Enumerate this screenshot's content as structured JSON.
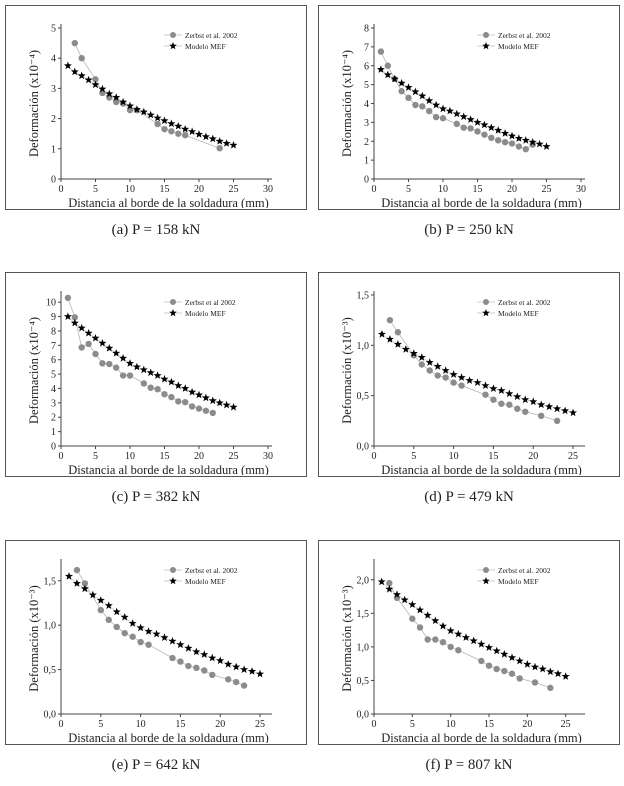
{
  "colors": {
    "exp": "#8c8c8c",
    "exp_line": "#b5b5b5",
    "model": "#000000"
  },
  "chart_data": [
    {
      "type": "scatter",
      "caption": "(a) P = 158 kN",
      "xlabel": "Distancia al borde de la soldadura (mm)",
      "ylabel": "Deformación (x10⁻⁴)",
      "xlim": [
        0,
        30
      ],
      "ylim": [
        0,
        5
      ],
      "xticks": [
        0,
        5,
        10,
        15,
        20,
        25,
        30
      ],
      "xtick_labels": [
        "0",
        "5",
        "10",
        "15",
        "20",
        "25",
        "30"
      ],
      "yticks": [
        0,
        1,
        2,
        3,
        4,
        5
      ],
      "ytick_labels": [
        "0",
        "1",
        "2",
        "3",
        "4",
        "5"
      ],
      "legend_position": "top-right",
      "series": [
        {
          "name": "Zerbst et al. 2002",
          "marker": "circle",
          "x": [
            2,
            3,
            5,
            6,
            7,
            8,
            9,
            10,
            11,
            14,
            15,
            16,
            17,
            18,
            23
          ],
          "y": [
            4.5,
            4.0,
            3.3,
            2.85,
            2.7,
            2.55,
            2.5,
            2.28,
            2.28,
            1.82,
            1.65,
            1.58,
            1.5,
            1.45,
            1.02
          ]
        },
        {
          "name": "Modelo MEF",
          "marker": "star",
          "x": [
            1,
            2,
            3,
            4,
            5,
            6,
            7,
            8,
            9,
            10,
            11,
            12,
            13,
            14,
            15,
            16,
            17,
            18,
            19,
            20,
            21,
            22,
            23,
            24,
            25
          ],
          "y": [
            3.75,
            3.55,
            3.42,
            3.28,
            3.12,
            2.98,
            2.82,
            2.7,
            2.55,
            2.42,
            2.3,
            2.22,
            2.12,
            2.02,
            1.93,
            1.83,
            1.75,
            1.65,
            1.57,
            1.48,
            1.4,
            1.33,
            1.25,
            1.18,
            1.12
          ]
        }
      ]
    },
    {
      "type": "scatter",
      "caption": "(b) P = 250 kN",
      "xlabel": "Distancia al borde de la soldadura (mm)",
      "ylabel": "Deformación (x10⁻⁴)",
      "xlim": [
        0,
        30
      ],
      "ylim": [
        0,
        8
      ],
      "xticks": [
        0,
        5,
        10,
        15,
        20,
        25,
        30
      ],
      "xtick_labels": [
        "0",
        "5",
        "10",
        "15",
        "20",
        "25",
        "30"
      ],
      "yticks": [
        0,
        1,
        2,
        3,
        4,
        5,
        6,
        7,
        8
      ],
      "ytick_labels": [
        "0",
        "1",
        "2",
        "3",
        "4",
        "5",
        "6",
        "7",
        "8"
      ],
      "legend_position": "top-right",
      "series": [
        {
          "name": "Zerbst et al. 2002",
          "marker": "circle",
          "x": [
            1,
            2,
            3,
            4,
            5,
            6,
            7,
            8,
            9,
            10,
            12,
            13,
            14,
            15,
            16,
            17,
            18,
            19,
            20,
            21,
            22,
            23
          ],
          "y": [
            6.75,
            6.0,
            5.3,
            4.65,
            4.3,
            3.92,
            3.85,
            3.6,
            3.28,
            3.22,
            2.92,
            2.72,
            2.68,
            2.52,
            2.35,
            2.18,
            2.05,
            1.95,
            1.88,
            1.72,
            1.58,
            1.82
          ]
        },
        {
          "name": "Modelo MEF",
          "marker": "star",
          "x": [
            1,
            2,
            3,
            4,
            5,
            6,
            7,
            8,
            9,
            10,
            11,
            12,
            13,
            14,
            15,
            16,
            17,
            18,
            19,
            20,
            21,
            22,
            23,
            24,
            25
          ],
          "y": [
            5.8,
            5.52,
            5.3,
            5.08,
            4.85,
            4.62,
            4.4,
            4.15,
            3.92,
            3.72,
            3.6,
            3.45,
            3.3,
            3.15,
            3.0,
            2.87,
            2.72,
            2.58,
            2.42,
            2.28,
            2.15,
            2.05,
            1.95,
            1.85,
            1.72
          ]
        }
      ]
    },
    {
      "type": "scatter",
      "caption": "(c) P = 382 kN",
      "xlabel": "Distancia al borde de la soldadura (mm)",
      "ylabel": "Deformación (x10⁻⁴)",
      "xlim": [
        0,
        30
      ],
      "ylim": [
        0,
        10.5
      ],
      "xticks": [
        0,
        5,
        10,
        15,
        20,
        25,
        30
      ],
      "xtick_labels": [
        "0",
        "5",
        "10",
        "15",
        "20",
        "25",
        "30"
      ],
      "yticks": [
        0,
        1,
        2,
        3,
        4,
        5,
        6,
        7,
        8,
        9,
        10
      ],
      "ytick_labels": [
        "0",
        "1",
        "2",
        "3",
        "4",
        "5",
        "6",
        "7",
        "8",
        "9",
        "10"
      ],
      "legend_position": "top-right",
      "series": [
        {
          "name": "Zerbst et al 2002",
          "marker": "circle",
          "x": [
            1,
            2,
            3,
            4,
            5,
            6,
            7,
            8,
            9,
            10,
            12,
            13,
            14,
            15,
            16,
            17,
            18,
            19,
            20,
            21,
            22
          ],
          "y": [
            10.3,
            8.95,
            6.85,
            7.1,
            6.4,
            5.75,
            5.7,
            5.45,
            4.9,
            4.9,
            4.35,
            4.05,
            3.95,
            3.6,
            3.4,
            3.1,
            3.05,
            2.75,
            2.6,
            2.45,
            2.3
          ]
        },
        {
          "name": "Modelo MEF",
          "marker": "star",
          "x": [
            1,
            2,
            3,
            4,
            5,
            6,
            7,
            8,
            9,
            10,
            11,
            12,
            13,
            14,
            15,
            16,
            17,
            18,
            19,
            20,
            21,
            22,
            23,
            24,
            25
          ],
          "y": [
            9.0,
            8.55,
            8.2,
            7.85,
            7.5,
            7.15,
            6.8,
            6.45,
            6.1,
            5.75,
            5.5,
            5.3,
            5.1,
            4.9,
            4.65,
            4.45,
            4.2,
            4.0,
            3.75,
            3.55,
            3.35,
            3.15,
            3.0,
            2.85,
            2.7
          ]
        }
      ]
    },
    {
      "type": "scatter",
      "caption": "(d) P = 479 kN",
      "xlabel": "Distancia al borde de la soldadura (mm)",
      "ylabel": "Deformación (x10⁻³)",
      "xlim": [
        0,
        26
      ],
      "ylim": [
        0,
        1.5
      ],
      "xticks": [
        0,
        5,
        10,
        15,
        20,
        25
      ],
      "xtick_labels": [
        "0",
        "5",
        "10",
        "15",
        "20",
        "25"
      ],
      "yticks": [
        0,
        0.5,
        1.0,
        1.5
      ],
      "ytick_labels": [
        "0,0",
        "0,5",
        "1,0",
        "1,5"
      ],
      "legend_position": "top-right",
      "series": [
        {
          "name": "Zerbst et al. 2002",
          "marker": "circle",
          "x": [
            2,
            3,
            5,
            6,
            7,
            8,
            9,
            10,
            11,
            14,
            15,
            16,
            17,
            18,
            19,
            21,
            23
          ],
          "y": [
            1.25,
            1.13,
            0.9,
            0.81,
            0.75,
            0.7,
            0.68,
            0.63,
            0.6,
            0.51,
            0.46,
            0.42,
            0.41,
            0.37,
            0.34,
            0.3,
            0.25
          ]
        },
        {
          "name": "Modelo MEF",
          "marker": "star",
          "x": [
            1,
            2,
            3,
            4,
            5,
            6,
            7,
            8,
            9,
            10,
            11,
            12,
            13,
            14,
            15,
            16,
            17,
            18,
            19,
            20,
            21,
            22,
            23,
            24,
            25
          ],
          "y": [
            1.11,
            1.06,
            1.01,
            0.96,
            0.92,
            0.88,
            0.83,
            0.79,
            0.75,
            0.71,
            0.68,
            0.65,
            0.63,
            0.6,
            0.57,
            0.55,
            0.52,
            0.49,
            0.46,
            0.44,
            0.41,
            0.39,
            0.37,
            0.35,
            0.33
          ]
        }
      ]
    },
    {
      "type": "scatter",
      "caption": "(e) P = 642 kN",
      "xlabel": "Distancia al borde de la soldadura (mm)",
      "ylabel": "Deformación (x10⁻³)",
      "xlim": [
        0,
        26
      ],
      "ylim": [
        0,
        1.7
      ],
      "xticks": [
        0,
        5,
        10,
        15,
        20,
        25
      ],
      "xtick_labels": [
        "0",
        "5",
        "10",
        "15",
        "20",
        "25"
      ],
      "yticks": [
        0,
        0.5,
        1.0,
        1.5
      ],
      "ytick_labels": [
        "0,0",
        "0,5",
        "1,0",
        "1,5"
      ],
      "legend_position": "top-right",
      "series": [
        {
          "name": "Zerbst et al. 2002",
          "marker": "circle",
          "x": [
            2,
            3,
            5,
            6,
            7,
            8,
            9,
            10,
            11,
            14,
            15,
            16,
            17,
            18,
            19,
            21,
            22,
            23
          ],
          "y": [
            1.62,
            1.47,
            1.17,
            1.06,
            0.98,
            0.91,
            0.87,
            0.81,
            0.78,
            0.63,
            0.59,
            0.54,
            0.52,
            0.49,
            0.44,
            0.39,
            0.36,
            0.32
          ]
        },
        {
          "name": "Modelo MEF",
          "marker": "star",
          "x": [
            1,
            2,
            3,
            4,
            5,
            6,
            7,
            8,
            9,
            10,
            11,
            12,
            13,
            14,
            15,
            16,
            17,
            18,
            19,
            20,
            21,
            22,
            23,
            24,
            25
          ],
          "y": [
            1.55,
            1.47,
            1.41,
            1.34,
            1.28,
            1.22,
            1.15,
            1.09,
            1.02,
            0.97,
            0.93,
            0.9,
            0.86,
            0.82,
            0.78,
            0.74,
            0.7,
            0.67,
            0.63,
            0.6,
            0.56,
            0.53,
            0.5,
            0.48,
            0.45
          ]
        }
      ]
    },
    {
      "type": "scatter",
      "caption": "(f) P = 807 kN",
      "xlabel": "Distancia al borde de la soldadura (mm)",
      "ylabel": "Deformación (x10⁻³)",
      "xlim": [
        0,
        27
      ],
      "ylim": [
        0,
        2.25
      ],
      "xticks": [
        0,
        5,
        10,
        15,
        20,
        25
      ],
      "xtick_labels": [
        "0",
        "5",
        "10",
        "15",
        "20",
        "25"
      ],
      "yticks": [
        0,
        0.5,
        1.0,
        1.5,
        2.0
      ],
      "ytick_labels": [
        "0,0",
        "0,5",
        "1,0",
        "1,5",
        "2,0"
      ],
      "legend_position": "top-right",
      "series": [
        {
          "name": "Zerbst et al. 2002",
          "marker": "circle",
          "x": [
            2,
            3,
            5,
            6,
            7,
            8,
            9,
            10,
            11,
            14,
            15,
            16,
            17,
            18,
            19,
            21,
            23
          ],
          "y": [
            1.95,
            1.73,
            1.42,
            1.29,
            1.11,
            1.11,
            1.07,
            1.0,
            0.95,
            0.79,
            0.72,
            0.67,
            0.64,
            0.6,
            0.53,
            0.47,
            0.39
          ]
        },
        {
          "name": "Modelo MEF",
          "marker": "star",
          "x": [
            1,
            2,
            3,
            4,
            5,
            6,
            7,
            8,
            9,
            10,
            11,
            12,
            13,
            14,
            15,
            16,
            17,
            18,
            19,
            20,
            21,
            22,
            23,
            24,
            25
          ],
          "y": [
            1.97,
            1.86,
            1.78,
            1.7,
            1.63,
            1.55,
            1.47,
            1.39,
            1.31,
            1.24,
            1.19,
            1.14,
            1.09,
            1.04,
            0.99,
            0.94,
            0.89,
            0.84,
            0.79,
            0.74,
            0.7,
            0.67,
            0.63,
            0.6,
            0.56
          ]
        }
      ]
    }
  ]
}
